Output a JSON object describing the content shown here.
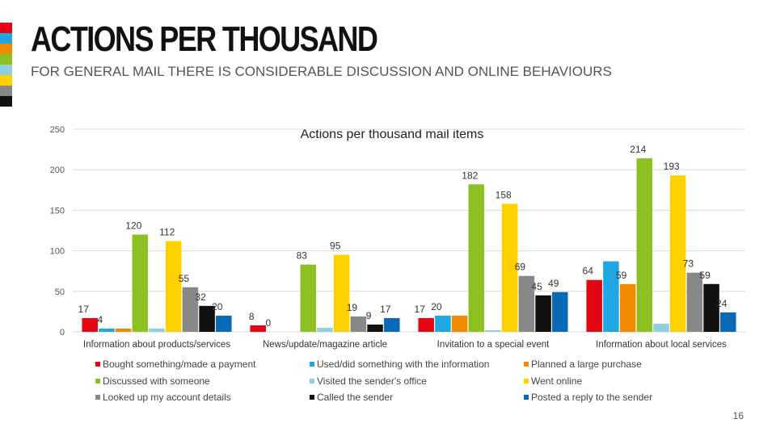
{
  "slide": {
    "title": "ACTIONS PER THOUSAND",
    "subtitle": "FOR GENERAL MAIL THERE IS CONSIDERABLE DISCUSSION AND ONLINE BEHAVIOURS",
    "page_number": "16",
    "stripe_colors": [
      "#e30613",
      "#1ea7e1",
      "#f18a00",
      "#8dc021",
      "#8ecfe0",
      "#ffd000",
      "#888888",
      "#111111"
    ]
  },
  "chart_data": {
    "type": "bar",
    "title": "Actions per thousand mail items",
    "xlabel": "",
    "ylabel": "",
    "ylim": [
      0,
      250
    ],
    "yticks": [
      0,
      50,
      100,
      150,
      200,
      250
    ],
    "grid": true,
    "legend_position": "bottom",
    "categories": [
      "Information about products/services",
      "News/update/magazine article",
      "Invitation to a special event",
      "Information about local services"
    ],
    "series": [
      {
        "name": "Bought something/made a payment",
        "color": "#e30613",
        "values": [
          17,
          8,
          17,
          64
        ],
        "labels": [
          "17",
          "8",
          "17",
          "64"
        ]
      },
      {
        "name": "Used/did something with the information",
        "color": "#1ea7e1",
        "values": [
          4,
          0,
          20,
          87
        ],
        "labels": [
          "4",
          "0",
          "20",
          ""
        ]
      },
      {
        "name": "Planned a large purchase",
        "color": "#f18a00",
        "values": [
          4,
          0,
          20,
          59
        ],
        "labels": [
          "",
          "",
          "",
          "59"
        ]
      },
      {
        "name": "Discussed with someone",
        "color": "#8dc021",
        "values": [
          120,
          83,
          182,
          214
        ],
        "labels": [
          "120",
          "83",
          "182",
          "214"
        ]
      },
      {
        "name": "Visited the sender's office",
        "color": "#8ecfe0",
        "values": [
          4,
          5,
          2,
          10
        ],
        "labels": [
          "",
          "",
          "",
          ""
        ]
      },
      {
        "name": "Went online",
        "color": "#ffd000",
        "values": [
          112,
          95,
          158,
          193
        ],
        "labels": [
          "112",
          "95",
          "158",
          "193"
        ]
      },
      {
        "name": "Looked up my account details",
        "color": "#888888",
        "values": [
          55,
          19,
          69,
          73
        ],
        "labels": [
          "55",
          "19",
          "69",
          "73"
        ]
      },
      {
        "name": "Called the sender",
        "color": "#111111",
        "values": [
          32,
          9,
          45,
          59
        ],
        "labels": [
          "32",
          "9",
          "45",
          "59"
        ]
      },
      {
        "name": "Posted a reply to the sender",
        "color": "#0a6ab5",
        "values": [
          20,
          17,
          49,
          24
        ],
        "labels": [
          "20",
          "17",
          "49",
          "24"
        ]
      }
    ]
  }
}
